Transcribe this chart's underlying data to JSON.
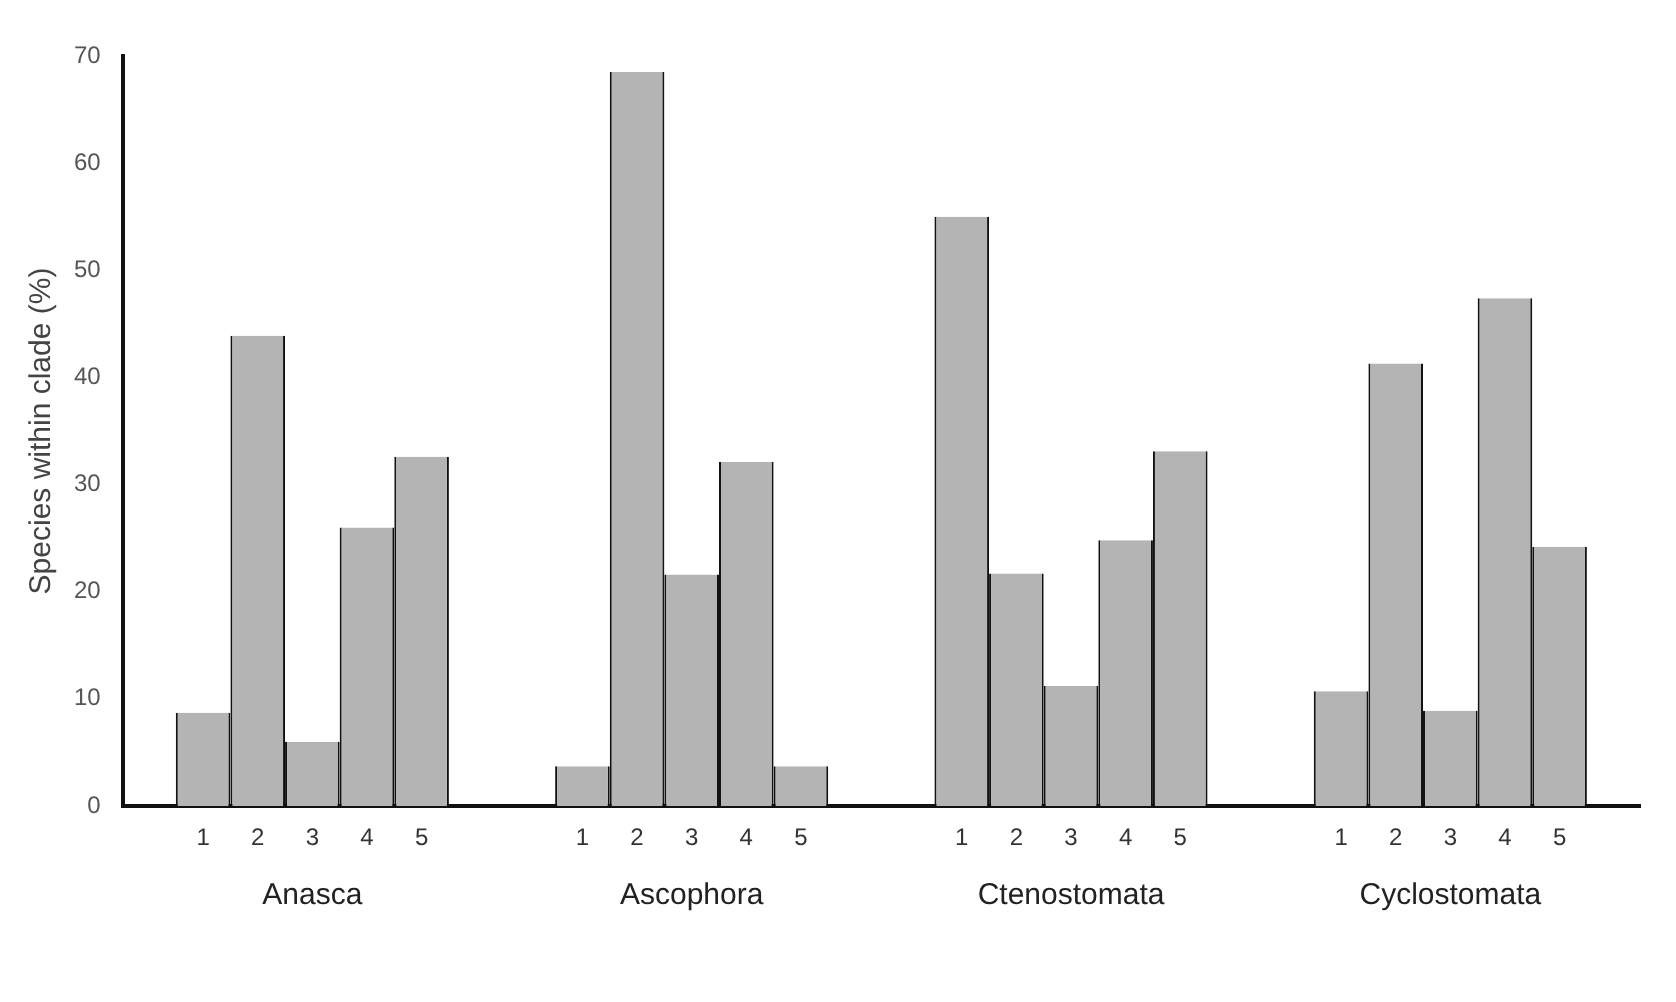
{
  "chart_data": {
    "type": "bar",
    "ylabel": "Species within clade (%)",
    "categories": [
      "Anasca",
      "Ascophora",
      "Ctenostomata",
      "Cyclostomata"
    ],
    "series": [
      {
        "name": "1",
        "color": "#b4b4b4",
        "values": [
          8.7,
          3.7,
          55.0,
          10.7
        ]
      },
      {
        "name": "2",
        "color": "#b4b4b4",
        "values": [
          43.9,
          68.5,
          21.7,
          41.3
        ]
      },
      {
        "name": "3",
        "color": "#b4b4b4",
        "values": [
          6.0,
          21.6,
          11.2,
          8.9
        ]
      },
      {
        "name": "4",
        "color": "#b4b4b4",
        "values": [
          26.0,
          32.1,
          24.8,
          47.4
        ]
      },
      {
        "name": "5",
        "color": "#b4b4b4",
        "values": [
          32.6,
          3.7,
          33.1,
          24.2
        ]
      }
    ],
    "ylim": [
      0,
      70
    ],
    "yticks": [
      0,
      10,
      20,
      30,
      40,
      50,
      60,
      70
    ],
    "grid": false,
    "legend": false
  }
}
